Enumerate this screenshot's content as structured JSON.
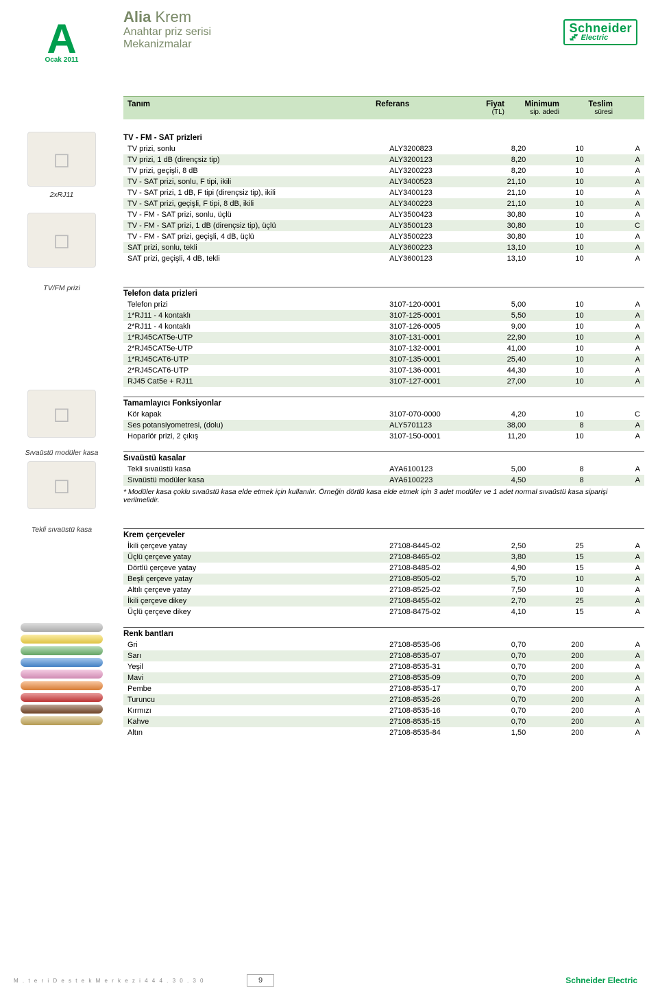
{
  "badge": {
    "letter": "A",
    "date": "Ocak 2011"
  },
  "series": {
    "line1_bold": "Alia",
    "line1_rest": " Krem",
    "line2": "Anahtar priz serisi",
    "line3": "Mekanizmalar"
  },
  "logo": {
    "line1": "Schneider",
    "line2": "Electric"
  },
  "columns": {
    "tanim": "Tanım",
    "ref": "Referans",
    "fiyat": "Fiyat",
    "fiyat_sub": "(TL)",
    "min": "Minimum",
    "min_sub": "sip. adedi",
    "teslim": "Teslim",
    "teslim_sub": "süresi"
  },
  "captions": {
    "rj11": "2xRJ11",
    "tvfm": "TV/FM prizi",
    "mod_kasa": "Sıvaüstü modüler kasa",
    "tek_kasa": "Tekli sıvaüstü kasa"
  },
  "sections": [
    {
      "title": "TV - FM - SAT prizleri",
      "rows": [
        [
          "TV prizi, sonlu",
          "ALY3200823",
          "8,20",
          "10",
          "A"
        ],
        [
          "TV prizi, 1 dB (dirençsiz tip)",
          "ALY3200123",
          "8,20",
          "10",
          "A"
        ],
        [
          "TV prizi, geçişli, 8 dB",
          "ALY3200223",
          "8,20",
          "10",
          "A"
        ],
        [
          "TV - SAT prizi, sonlu, F tipi, ikili",
          "ALY3400523",
          "21,10",
          "10",
          "A"
        ],
        [
          "TV - SAT prizi, 1 dB, F tipi (dirençsiz tip), ikili",
          "ALY3400123",
          "21,10",
          "10",
          "A"
        ],
        [
          "TV - SAT prizi, geçişli, F tipi, 8 dB, ikili",
          "ALY3400223",
          "21,10",
          "10",
          "A"
        ],
        [
          "TV - FM - SAT prizi, sonlu, üçlü",
          "ALY3500423",
          "30,80",
          "10",
          "A"
        ],
        [
          "TV - FM - SAT prizi, 1 dB (dirençsiz tip), üçlü",
          "ALY3500123",
          "30,80",
          "10",
          "C"
        ],
        [
          "TV - FM - SAT prizi, geçişli, 4 dB, üçlü",
          "ALY3500223",
          "30,80",
          "10",
          "A"
        ],
        [
          "SAT prizi, sonlu, tekli",
          "ALY3600223",
          "13,10",
          "10",
          "A"
        ],
        [
          "SAT prizi, geçişli, 4 dB, tekli",
          "ALY3600123",
          "13,10",
          "10",
          "A"
        ]
      ]
    },
    {
      "title": "Telefon data prizleri",
      "rows": [
        [
          "Telefon prizi",
          "3107-120-0001",
          "5,00",
          "10",
          "A"
        ],
        [
          "1*RJ11 - 4 kontaklı",
          "3107-125-0001",
          "5,50",
          "10",
          "A"
        ],
        [
          "2*RJ11 - 4 kontaklı",
          "3107-126-0005",
          "9,00",
          "10",
          "A"
        ],
        [
          "1*RJ45CAT5e-UTP",
          "3107-131-0001",
          "22,90",
          "10",
          "A"
        ],
        [
          "2*RJ45CAT5e-UTP",
          "3107-132-0001",
          "41,00",
          "10",
          "A"
        ],
        [
          "1*RJ45CAT6-UTP",
          "3107-135-0001",
          "25,40",
          "10",
          "A"
        ],
        [
          "2*RJ45CAT6-UTP",
          "3107-136-0001",
          "44,30",
          "10",
          "A"
        ],
        [
          "RJ45 Cat5e + RJ11",
          "3107-127-0001",
          "27,00",
          "10",
          "A"
        ]
      ]
    },
    {
      "title": "Tamamlayıcı Fonksiyonlar",
      "rows": [
        [
          "Kör kapak",
          "3107-070-0000",
          "4,20",
          "10",
          "C"
        ],
        [
          "Ses potansiyometresi, (dolu)",
          "ALY5701123",
          "38,00",
          "8",
          "A"
        ],
        [
          "Hoparlör prizi, 2 çıkış",
          "3107-150-0001",
          "11,20",
          "10",
          "A"
        ]
      ]
    },
    {
      "title": "Sıvaüstü kasalar",
      "rows": [
        [
          "Tekli sıvaüstü kasa",
          "AYA6100123",
          "5,00",
          "8",
          "A"
        ],
        [
          "Sıvaüstü modüler kasa",
          "AYA6100223",
          "4,50",
          "8",
          "A"
        ]
      ],
      "footnote": "* Modüler kasa çoklu sıvaüstü kasa elde etmek için kullanılır. Örneğin dörtlü kasa elde etmek için 3 adet modüler ve 1 adet normal sıvaüstü kasa siparişi verilmelidir."
    },
    {
      "title": "Krem çerçeveler",
      "rows": [
        [
          "İkili çerçeve yatay",
          "27108-8445-02",
          "2,50",
          "25",
          "A"
        ],
        [
          "Üçlü çerçeve yatay",
          "27108-8465-02",
          "3,80",
          "15",
          "A"
        ],
        [
          "Dörtlü çerçeve yatay",
          "27108-8485-02",
          "4,90",
          "15",
          "A"
        ],
        [
          "Beşli çerçeve yatay",
          "27108-8505-02",
          "5,70",
          "10",
          "A"
        ],
        [
          "Altılı çerçeve yatay",
          "27108-8525-02",
          "7,50",
          "10",
          "A"
        ],
        [
          "İkili çerçeve dikey",
          "27108-8455-02",
          "2,70",
          "25",
          "A"
        ],
        [
          "Üçlü çerçeve dikey",
          "27108-8475-02",
          "4,10",
          "15",
          "A"
        ]
      ]
    },
    {
      "title": "Renk bantları",
      "rows": [
        [
          "Gri",
          "27108-8535-06",
          "0,70",
          "200",
          "A"
        ],
        [
          "Sarı",
          "27108-8535-07",
          "0,70",
          "200",
          "A"
        ],
        [
          "Yeşil",
          "27108-8535-31",
          "0,70",
          "200",
          "A"
        ],
        [
          "Mavi",
          "27108-8535-09",
          "0,70",
          "200",
          "A"
        ],
        [
          "Pembe",
          "27108-8535-17",
          "0,70",
          "200",
          "A"
        ],
        [
          "Turuncu",
          "27108-8535-26",
          "0,70",
          "200",
          "A"
        ],
        [
          "Kırmızı",
          "27108-8535-16",
          "0,70",
          "200",
          "A"
        ],
        [
          "Kahve",
          "27108-8535-15",
          "0,70",
          "200",
          "A"
        ],
        [
          "Altın",
          "27108-8535-84",
          "1,50",
          "200",
          "A"
        ]
      ]
    }
  ],
  "strip_colors": [
    "#bdbdbd",
    "#f7d94a",
    "#6fb76f",
    "#4a8fd9",
    "#e89bc7",
    "#ef8a3a",
    "#d13a3a",
    "#7a4a2a",
    "#c8ab5a"
  ],
  "footer": {
    "left": "M . t e r i D e s t e k   M e r k e z i 4 4 4 . 3 0 . 3 0",
    "page": "9",
    "right": "Schneider Electric"
  }
}
